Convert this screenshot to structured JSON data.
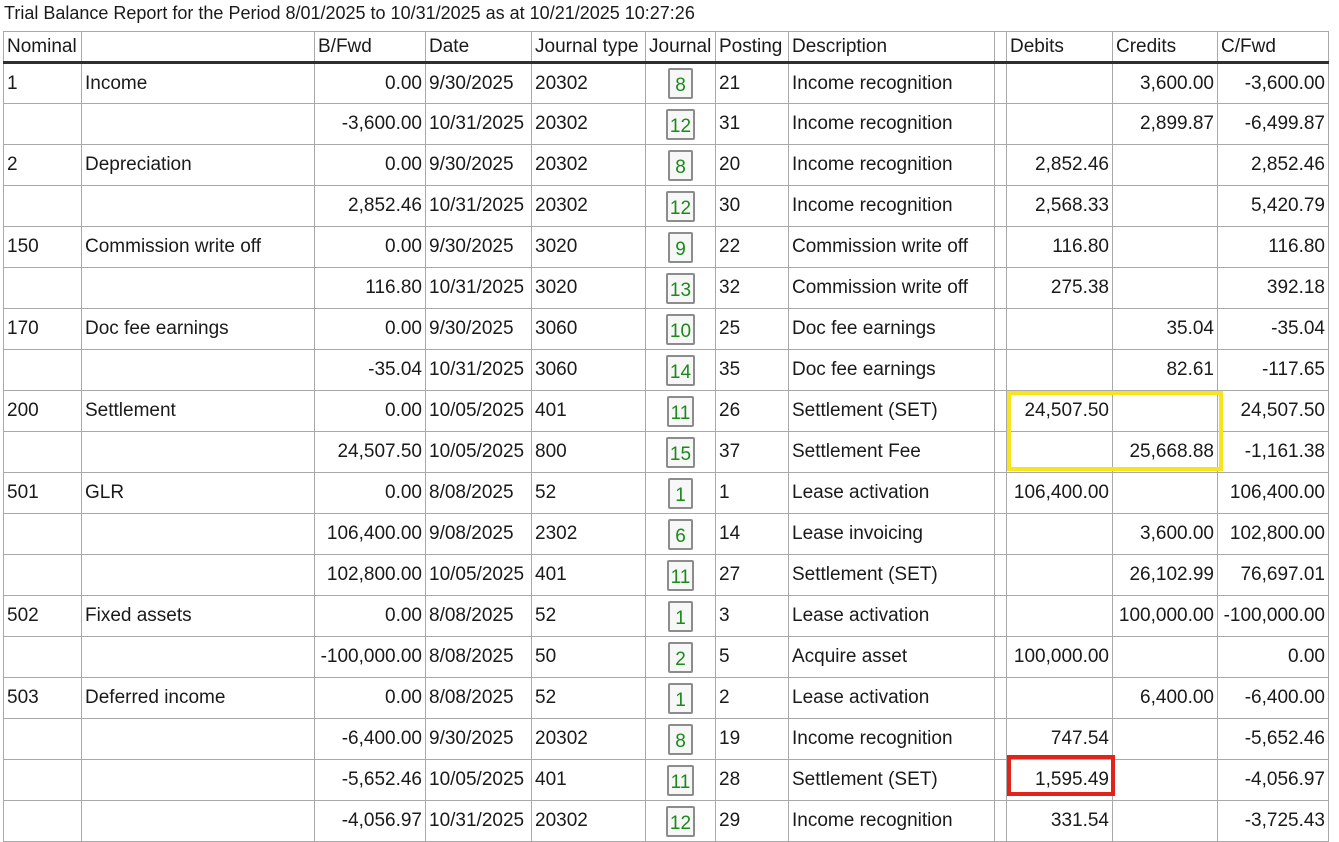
{
  "title": "Trial Balance Report for the Period 8/01/2025 to 10/31/2025 as at 10/21/2025 10:27:26",
  "columns": {
    "nominal": "Nominal",
    "name": "",
    "bfwd": "B/Fwd",
    "date": "Date",
    "journal_type": "Journal type",
    "journal": "Journal",
    "posting": "Posting",
    "description": "Description",
    "debits": "Debits",
    "credits": "Credits",
    "cfwd": "C/Fwd"
  },
  "rows": [
    {
      "nominal": "1",
      "name": "Income",
      "bfwd": "0.00",
      "date": "9/30/2025",
      "journal_type": "20302",
      "journal": "8",
      "posting": "21",
      "description": "Income recognition",
      "debits": "",
      "credits": "3,600.00",
      "cfwd": "-3,600.00"
    },
    {
      "nominal": "",
      "name": "",
      "bfwd": "-3,600.00",
      "date": "10/31/2025",
      "journal_type": "20302",
      "journal": "12",
      "posting": "31",
      "description": "Income recognition",
      "debits": "",
      "credits": "2,899.87",
      "cfwd": "-6,499.87"
    },
    {
      "nominal": "2",
      "name": "Depreciation",
      "bfwd": "0.00",
      "date": "9/30/2025",
      "journal_type": "20302",
      "journal": "8",
      "posting": "20",
      "description": "Income recognition",
      "debits": "2,852.46",
      "credits": "",
      "cfwd": "2,852.46"
    },
    {
      "nominal": "",
      "name": "",
      "bfwd": "2,852.46",
      "date": "10/31/2025",
      "journal_type": "20302",
      "journal": "12",
      "posting": "30",
      "description": "Income recognition",
      "debits": "2,568.33",
      "credits": "",
      "cfwd": "5,420.79"
    },
    {
      "nominal": "150",
      "name": "Commission write off",
      "bfwd": "0.00",
      "date": "9/30/2025",
      "journal_type": "3020",
      "journal": "9",
      "posting": "22",
      "description": "Commission write off",
      "debits": "116.80",
      "credits": "",
      "cfwd": "116.80"
    },
    {
      "nominal": "",
      "name": "",
      "bfwd": "116.80",
      "date": "10/31/2025",
      "journal_type": "3020",
      "journal": "13",
      "posting": "32",
      "description": "Commission write off",
      "debits": "275.38",
      "credits": "",
      "cfwd": "392.18"
    },
    {
      "nominal": "170",
      "name": "Doc fee earnings",
      "bfwd": "0.00",
      "date": "9/30/2025",
      "journal_type": "3060",
      "journal": "10",
      "posting": "25",
      "description": "Doc fee earnings",
      "debits": "",
      "credits": "35.04",
      "cfwd": "-35.04"
    },
    {
      "nominal": "",
      "name": "",
      "bfwd": "-35.04",
      "date": "10/31/2025",
      "journal_type": "3060",
      "journal": "14",
      "posting": "35",
      "description": "Doc fee earnings",
      "debits": "",
      "credits": "82.61",
      "cfwd": "-117.65"
    },
    {
      "nominal": "200",
      "name": "Settlement",
      "bfwd": "0.00",
      "date": "10/05/2025",
      "journal_type": "401",
      "journal": "11",
      "posting": "26",
      "description": "Settlement (SET)",
      "debits": "24,507.50",
      "credits": "",
      "cfwd": "24,507.50"
    },
    {
      "nominal": "",
      "name": "",
      "bfwd": "24,507.50",
      "date": "10/05/2025",
      "journal_type": "800",
      "journal": "15",
      "posting": "37",
      "description": "Settlement Fee",
      "debits": "",
      "credits": "25,668.88",
      "cfwd": "-1,161.38"
    },
    {
      "nominal": "501",
      "name": "GLR",
      "bfwd": "0.00",
      "date": "8/08/2025",
      "journal_type": "52",
      "journal": "1",
      "posting": "1",
      "description": "Lease activation",
      "debits": "106,400.00",
      "credits": "",
      "cfwd": "106,400.00"
    },
    {
      "nominal": "",
      "name": "",
      "bfwd": "106,400.00",
      "date": "9/08/2025",
      "journal_type": "2302",
      "journal": "6",
      "posting": "14",
      "description": "Lease invoicing",
      "debits": "",
      "credits": "3,600.00",
      "cfwd": "102,800.00"
    },
    {
      "nominal": "",
      "name": "",
      "bfwd": "102,800.00",
      "date": "10/05/2025",
      "journal_type": "401",
      "journal": "11",
      "posting": "27",
      "description": "Settlement (SET)",
      "debits": "",
      "credits": "26,102.99",
      "cfwd": "76,697.01"
    },
    {
      "nominal": "502",
      "name": "Fixed assets",
      "bfwd": "0.00",
      "date": "8/08/2025",
      "journal_type": "52",
      "journal": "1",
      "posting": "3",
      "description": "Lease activation",
      "debits": "",
      "credits": "100,000.00",
      "cfwd": "-100,000.00"
    },
    {
      "nominal": "",
      "name": "",
      "bfwd": "-100,000.00",
      "date": "8/08/2025",
      "journal_type": "50",
      "journal": "2",
      "posting": "5",
      "description": "Acquire asset",
      "debits": "100,000.00",
      "credits": "",
      "cfwd": "0.00"
    },
    {
      "nominal": "503",
      "name": "Deferred income",
      "bfwd": "0.00",
      "date": "8/08/2025",
      "journal_type": "52",
      "journal": "1",
      "posting": "2",
      "description": "Lease activation",
      "debits": "",
      "credits": "6,400.00",
      "cfwd": "-6,400.00"
    },
    {
      "nominal": "",
      "name": "",
      "bfwd": "-6,400.00",
      "date": "9/30/2025",
      "journal_type": "20302",
      "journal": "8",
      "posting": "19",
      "description": "Income recognition",
      "debits": "747.54",
      "credits": "",
      "cfwd": "-5,652.46"
    },
    {
      "nominal": "",
      "name": "",
      "bfwd": "-5,652.46",
      "date": "10/05/2025",
      "journal_type": "401",
      "journal": "11",
      "posting": "28",
      "description": "Settlement (SET)",
      "debits": "1,595.49",
      "credits": "",
      "cfwd": "-4,056.97"
    },
    {
      "nominal": "",
      "name": "",
      "bfwd": "-4,056.97",
      "date": "10/31/2025",
      "journal_type": "20302",
      "journal": "12",
      "posting": "29",
      "description": "Income recognition",
      "debits": "331.54",
      "credits": "",
      "cfwd": "-3,725.43"
    }
  ],
  "colors": {
    "journal_link": "#1a8a1a",
    "highlight_yellow": "#f6e51c",
    "highlight_red": "#e2231a"
  }
}
